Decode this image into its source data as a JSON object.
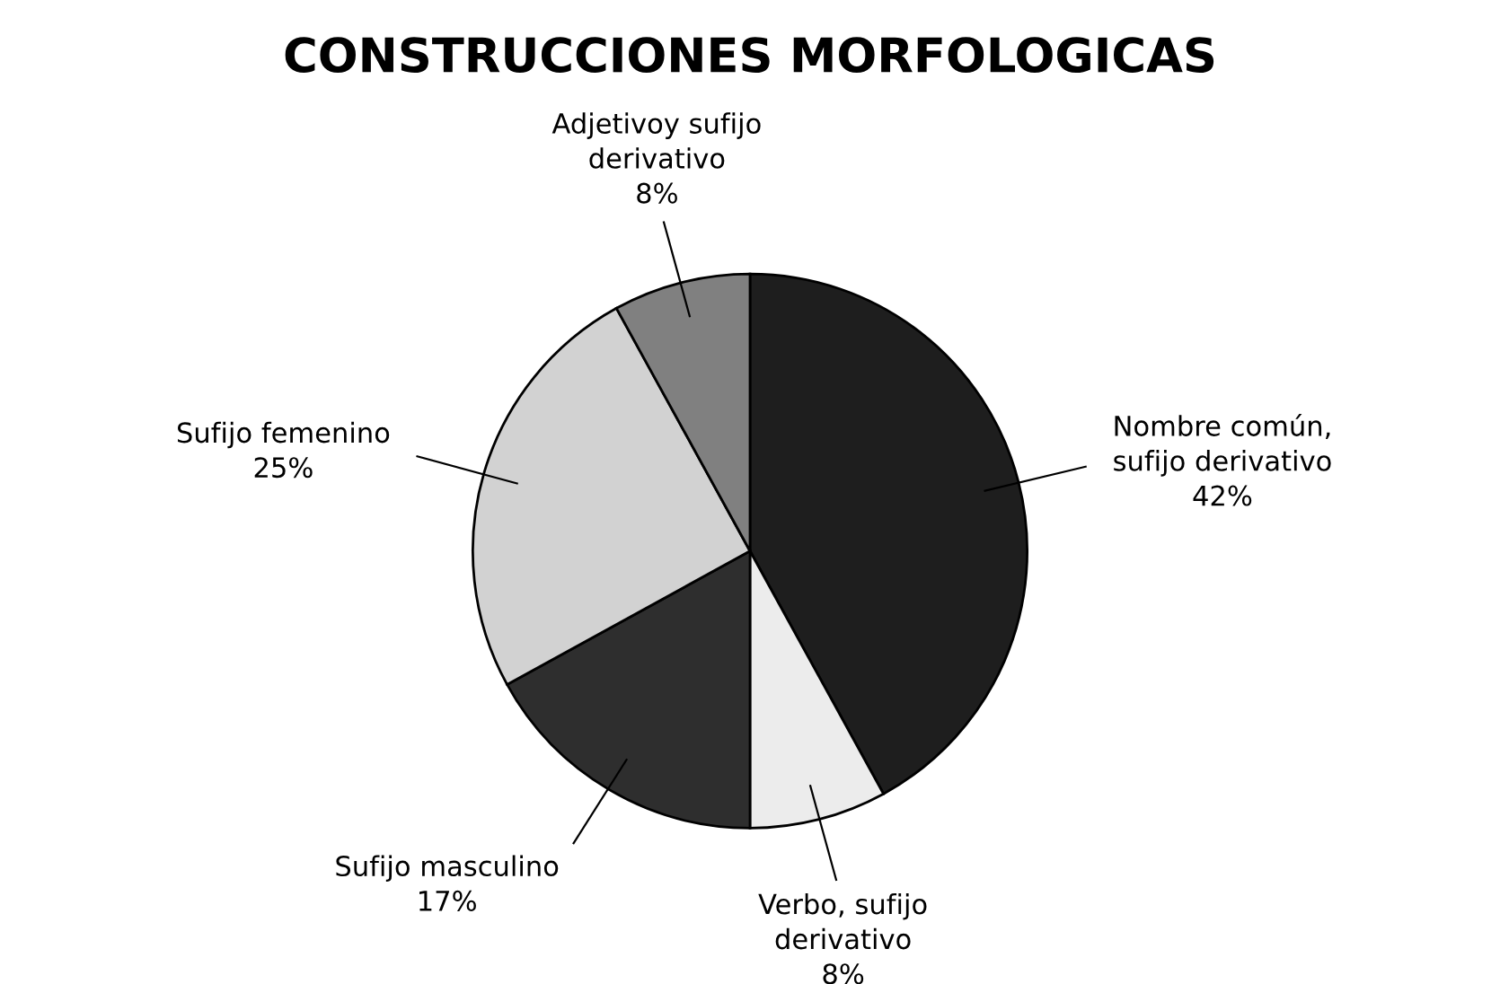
{
  "chart_data": {
    "type": "pie",
    "title": "CONSTRUCCIONES MORFOLOGICAS",
    "categories": [
      "Nombre común,\nsufijo derivativo",
      "Verbo, sufijo\nderivativo",
      "Sufijo masculino",
      "Sufijo femenino",
      "Adjetivoy sufijo\nderivativo"
    ],
    "values": [
      42,
      8,
      17,
      25,
      8
    ],
    "value_labels": [
      "42%",
      "8%",
      "17%",
      "25%",
      "8%"
    ],
    "colors": [
      "#1e1e1e",
      "#ececec",
      "#2e2e2e",
      "#d2d2d2",
      "#808080"
    ],
    "legend": false
  }
}
